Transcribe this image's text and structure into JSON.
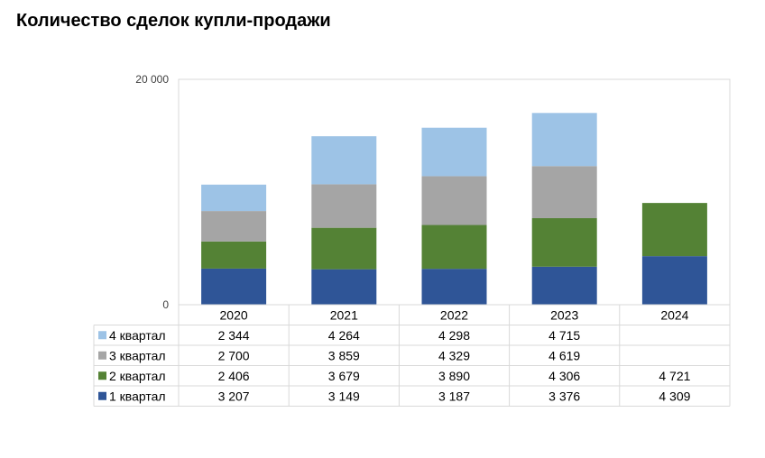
{
  "title": "Количество сделок купли-продажи",
  "chart_data": {
    "type": "bar",
    "stacked": true,
    "categories": [
      "2020",
      "2021",
      "2022",
      "2023",
      "2024"
    ],
    "ylim": [
      0,
      20000
    ],
    "y_tick_labels": [
      "0",
      "20 000"
    ],
    "grid": false,
    "legend": "data-table",
    "series": [
      {
        "name": "1 квартал",
        "color": "#2F5597",
        "values": [
          3207,
          3149,
          3187,
          3376,
          4309
        ],
        "labels": [
          "3 207",
          "3 149",
          "3 187",
          "3 376",
          "4 309"
        ]
      },
      {
        "name": "2 квартал",
        "color": "#548235",
        "values": [
          2406,
          3679,
          3890,
          4306,
          4721
        ],
        "labels": [
          "2 406",
          "3 679",
          "3 890",
          "4 306",
          "4 721"
        ]
      },
      {
        "name": "3 квартал",
        "color": "#A5A5A5",
        "values": [
          2700,
          3859,
          4329,
          4619,
          null
        ],
        "labels": [
          "2 700",
          "3 859",
          "4 329",
          "4 619",
          ""
        ]
      },
      {
        "name": "4 квартал",
        "color": "#9DC3E6",
        "values": [
          2344,
          4264,
          4298,
          4715,
          null
        ],
        "labels": [
          "2 344",
          "4 264",
          "4 298",
          "4 715",
          ""
        ]
      }
    ]
  }
}
